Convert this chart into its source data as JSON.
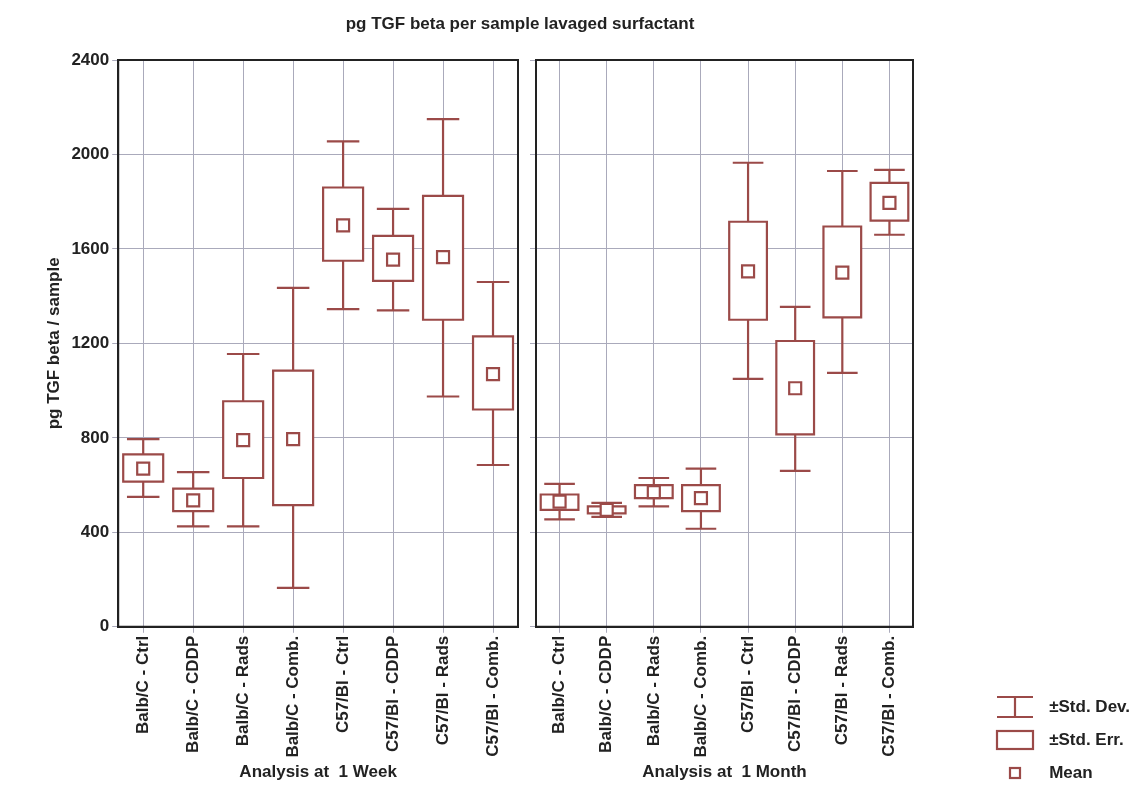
{
  "chart_data": [
    {
      "type": "box",
      "title": "pg TGF beta per sample lavaged surfactant",
      "ylabel": "pg TGF beta / sample",
      "xlabel": "Analysis at  1 Week",
      "categories": [
        "Balb/C - Ctrl",
        "Balb/C - CDDP",
        "Balb/C - Rads",
        "Balb/C - Comb.",
        "C57/Bl - Ctrl",
        "C57/Bl - CDDP",
        "C57/Bl - Rads",
        "C57/Bl - Comb."
      ],
      "color": "#9b4a48",
      "boxes": [
        {
          "low": 550,
          "q1": 615,
          "median": 670,
          "q3": 730,
          "high": 795
        },
        {
          "low": 425,
          "q1": 490,
          "median": 535,
          "q3": 585,
          "high": 655
        },
        {
          "low": 425,
          "q1": 630,
          "median": 790,
          "q3": 955,
          "high": 1155
        },
        {
          "low": 165,
          "q1": 515,
          "median": 795,
          "q3": 1085,
          "high": 1435
        },
        {
          "low": 1345,
          "q1": 1550,
          "median": 1700,
          "q3": 1860,
          "high": 2055
        },
        {
          "low": 1340,
          "q1": 1465,
          "median": 1555,
          "q3": 1655,
          "high": 1770
        },
        {
          "low": 975,
          "q1": 1300,
          "median": 1565,
          "q3": 1825,
          "high": 2150
        },
        {
          "low": 685,
          "q1": 920,
          "median": 1070,
          "q3": 1230,
          "high": 1460
        }
      ],
      "ylim": [
        0,
        2400
      ],
      "yticks": [
        0,
        400,
        800,
        1200,
        1600,
        2000,
        2400
      ],
      "grid": true
    },
    {
      "type": "box",
      "xlabel": "Analysis at  1 Month",
      "categories": [
        "Balb/C - Ctrl",
        "Balb/C - CDDP",
        "Balb/C - Rads",
        "Balb/C - Comb.",
        "C57/Bl - Ctrl",
        "C57/Bl - CDDP",
        "C57/Bl - Rads",
        "C57/Bl - Comb."
      ],
      "color": "#9b4a48",
      "boxes": [
        {
          "low": 455,
          "q1": 495,
          "median": 530,
          "q3": 560,
          "high": 605
        },
        {
          "low": 465,
          "q1": 480,
          "median": 495,
          "q3": 510,
          "high": 525
        },
        {
          "low": 510,
          "q1": 545,
          "median": 570,
          "q3": 600,
          "high": 630
        },
        {
          "low": 415,
          "q1": 490,
          "median": 545,
          "q3": 600,
          "high": 670
        },
        {
          "low": 1050,
          "q1": 1300,
          "median": 1505,
          "q3": 1715,
          "high": 1965
        },
        {
          "low": 660,
          "q1": 815,
          "median": 1010,
          "q3": 1210,
          "high": 1355
        },
        {
          "low": 1075,
          "q1": 1310,
          "median": 1500,
          "q3": 1695,
          "high": 1930
        },
        {
          "low": 1660,
          "q1": 1720,
          "median": 1795,
          "q3": 1880,
          "high": 1935
        }
      ],
      "ylim": [
        0,
        2400
      ],
      "yticks": [
        0,
        400,
        800,
        1200,
        1600,
        2000,
        2400
      ],
      "grid": true,
      "tick_labels": "x",
      "annotations": [
        "±Std. Dev.",
        "±Std. Err.",
        "Mean"
      ]
    }
  ]
}
